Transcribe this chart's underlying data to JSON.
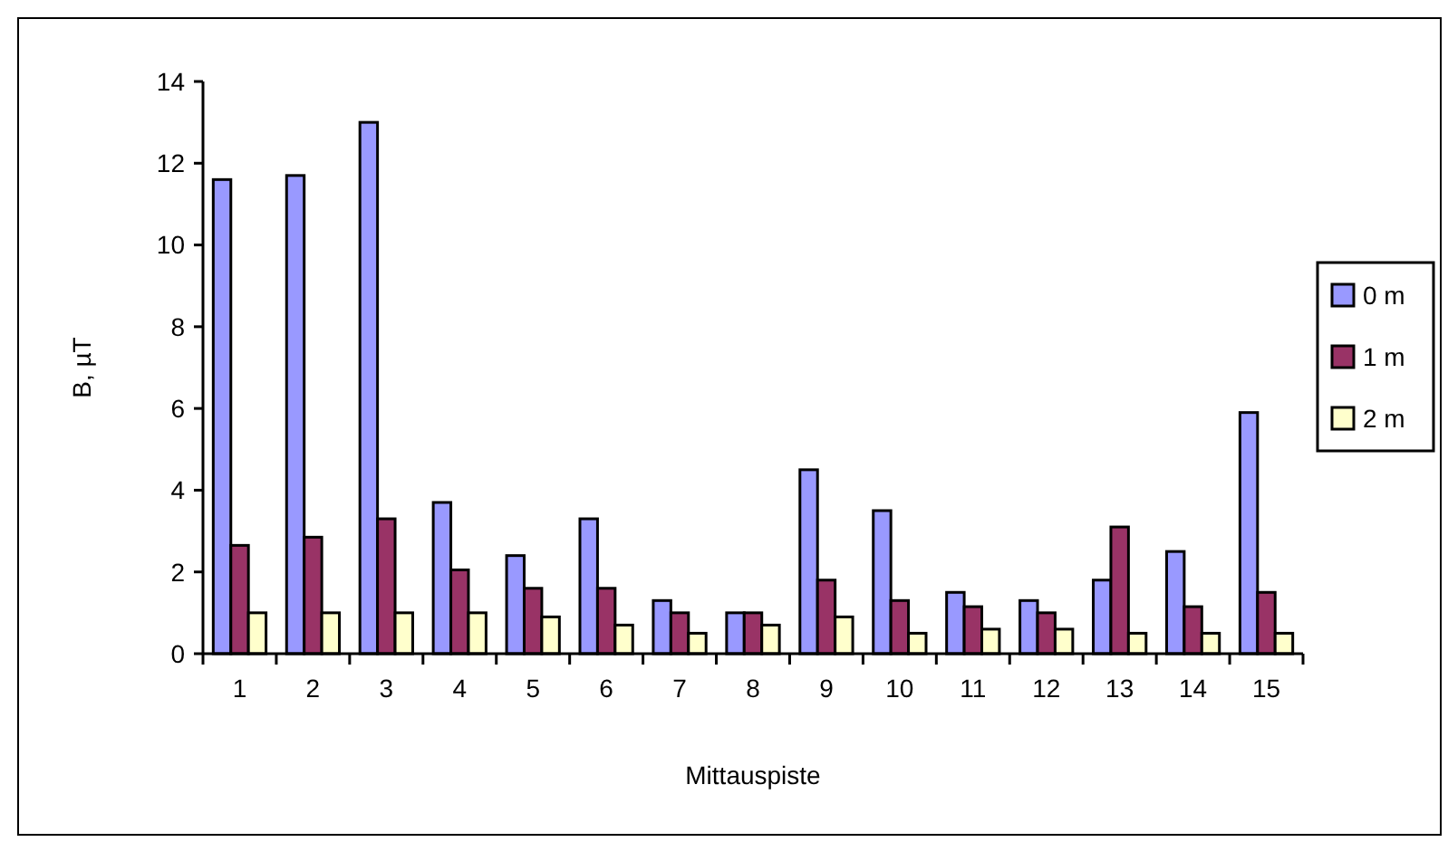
{
  "chart_data": {
    "type": "bar",
    "xlabel": "Mittauspiste",
    "ylabel": "B, µT",
    "categories": [
      "1",
      "2",
      "3",
      "4",
      "5",
      "6",
      "7",
      "8",
      "9",
      "10",
      "11",
      "12",
      "13",
      "14",
      "15"
    ],
    "series": [
      {
        "name": "0 m",
        "color": "#9999ff",
        "values": [
          11.6,
          11.7,
          13.0,
          3.7,
          2.4,
          3.3,
          1.3,
          1.0,
          4.5,
          3.5,
          1.5,
          1.3,
          1.8,
          2.5,
          5.9
        ]
      },
      {
        "name": "1 m",
        "color": "#993366",
        "values": [
          2.65,
          2.85,
          3.3,
          2.05,
          1.6,
          1.6,
          1.0,
          1.0,
          1.8,
          1.3,
          1.15,
          1.0,
          3.1,
          1.15,
          1.5
        ]
      },
      {
        "name": "2 m",
        "color": "#ffffcc",
        "values": [
          1.0,
          1.0,
          1.0,
          1.0,
          0.9,
          0.7,
          0.5,
          0.7,
          0.9,
          0.5,
          0.6,
          0.6,
          0.5,
          0.5,
          0.5
        ]
      }
    ],
    "ylim": [
      0,
      14
    ],
    "yticks": [
      0,
      2,
      4,
      6,
      8,
      10,
      12,
      14
    ],
    "grid": false,
    "legend": "right"
  }
}
